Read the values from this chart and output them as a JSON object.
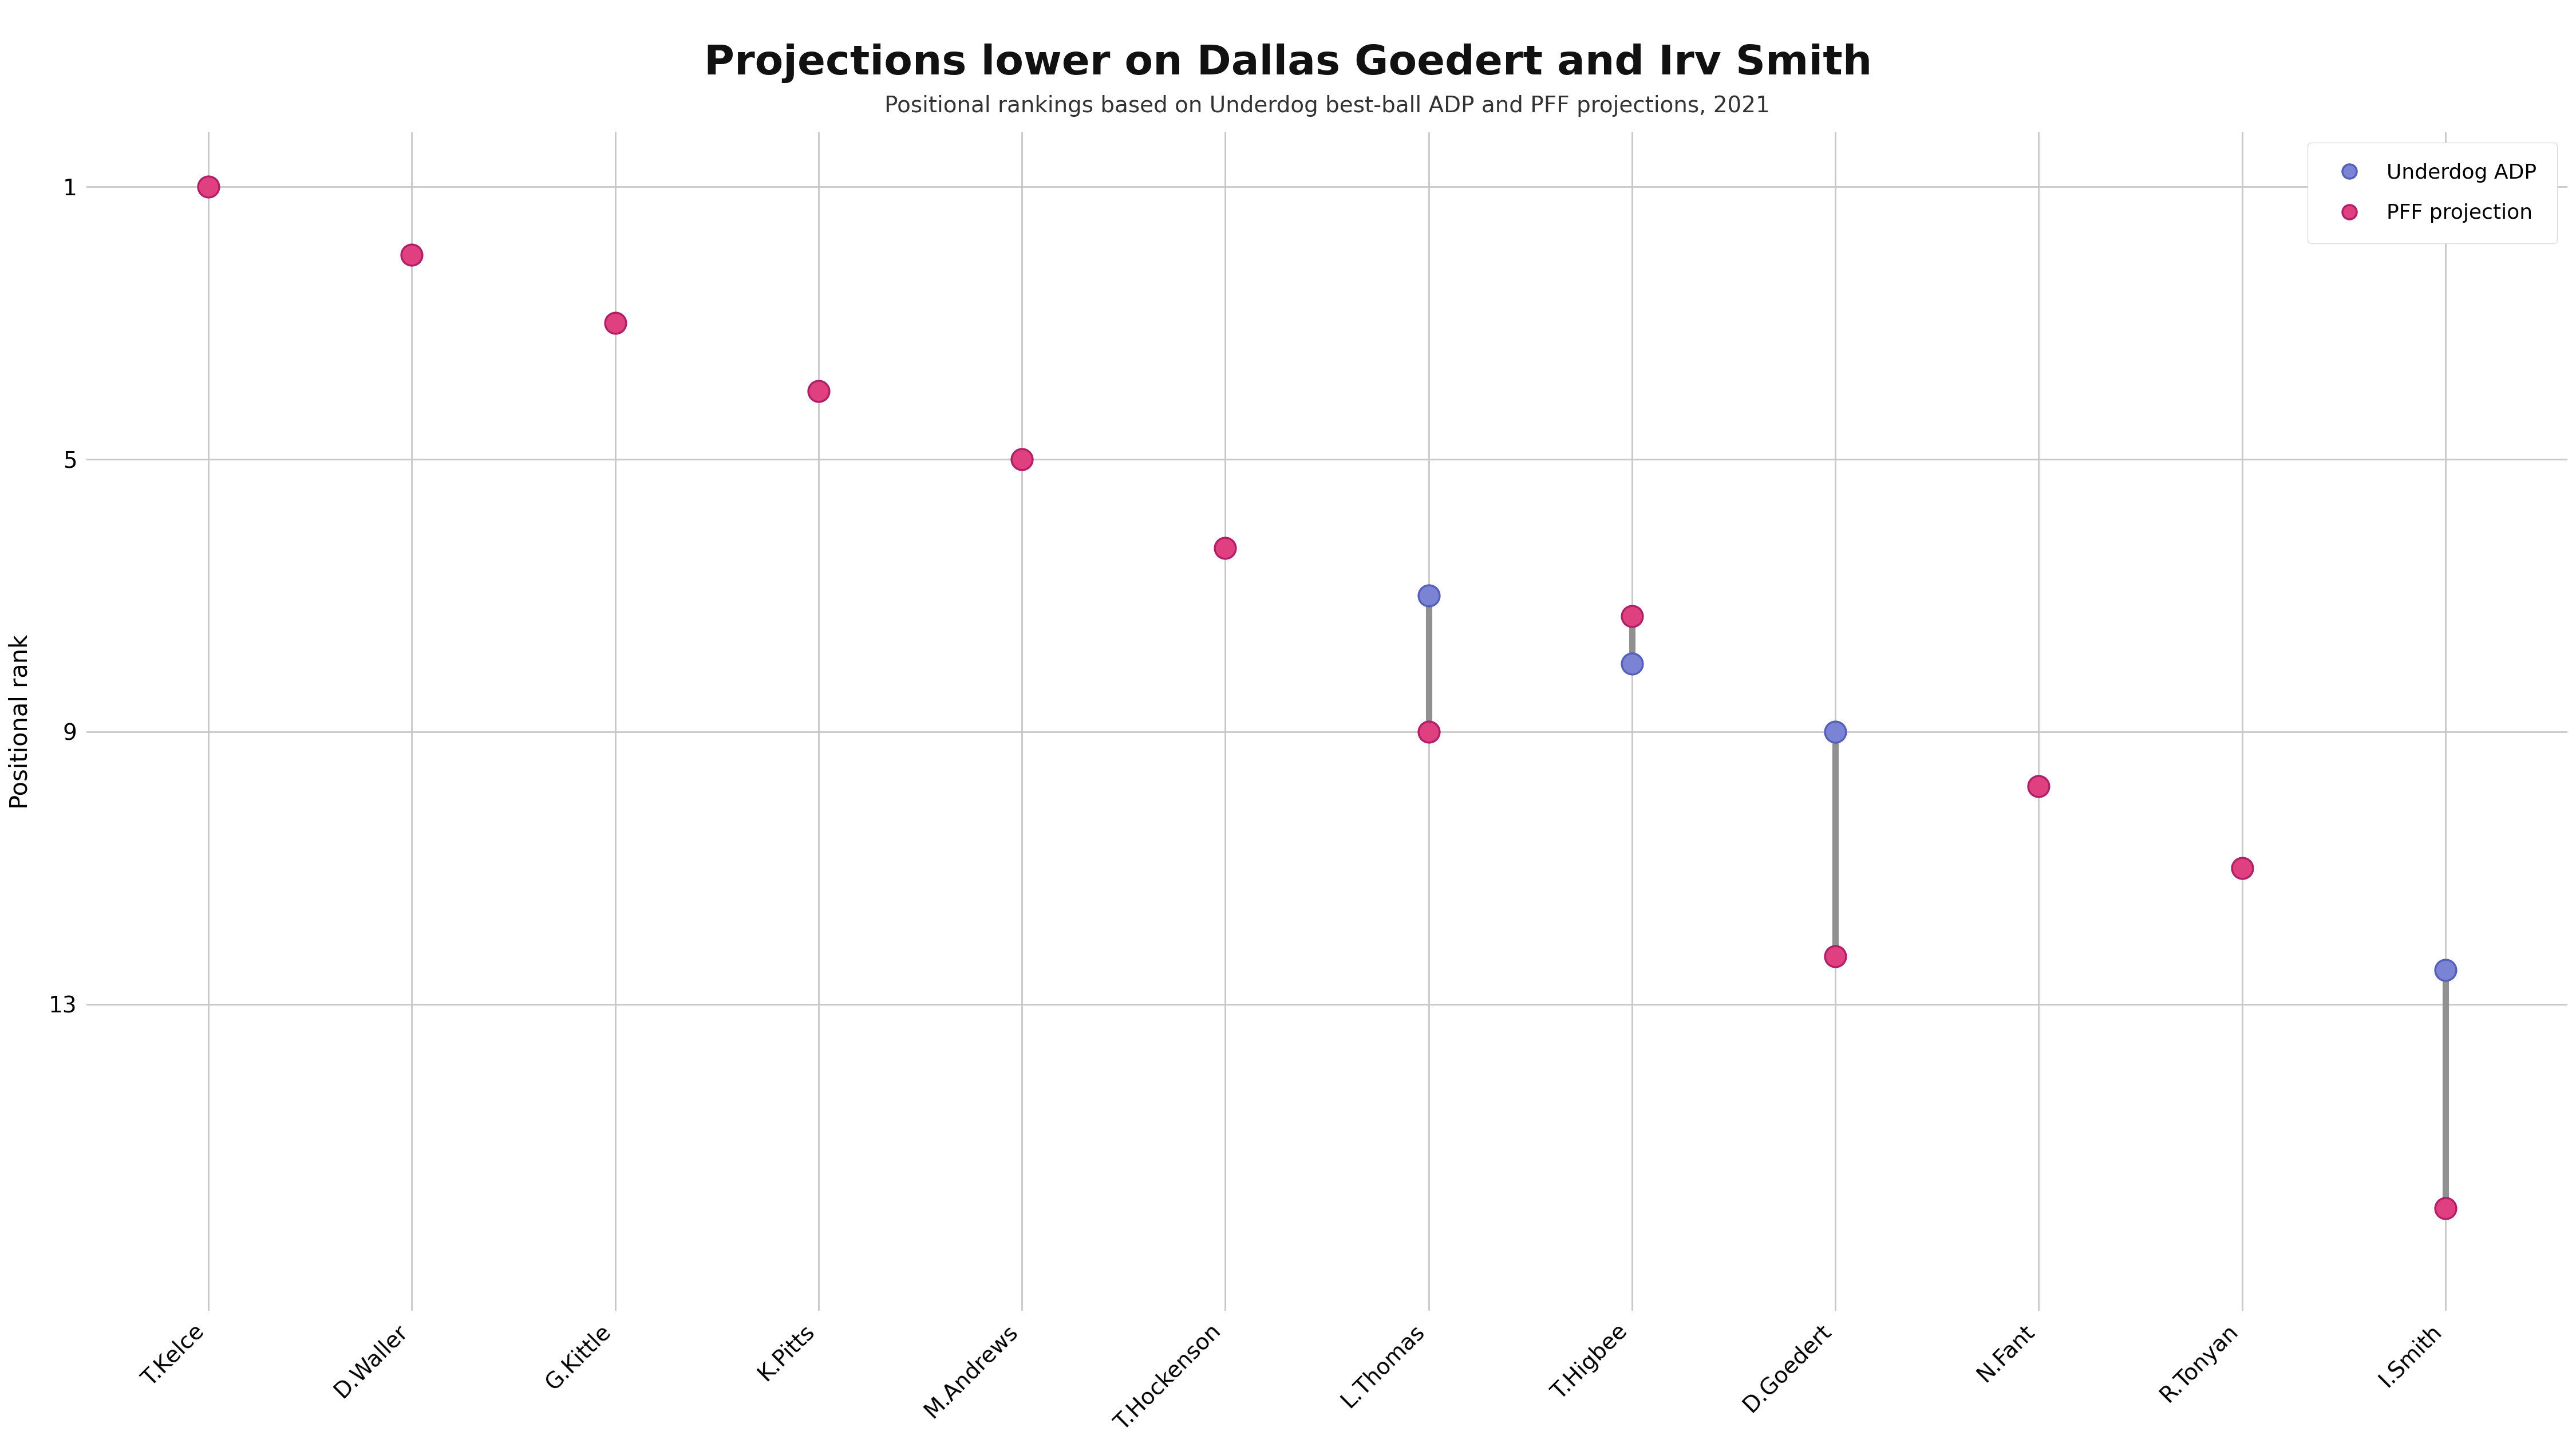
{
  "title": "Projections lower on Dallas Goedert and Irv Smith",
  "subtitle": "Positional rankings based on Underdog best-ball ADP and PFF projections, 2021",
  "ylabel": "Positional rank",
  "players": [
    "T.Kelce",
    "D.Waller",
    "G.Kittle",
    "K.Pitts",
    "M.Andrews",
    "T.Hockenson",
    "L.Thomas",
    "T.Higbee",
    "D.Goedert",
    "N.Fant",
    "R.Tonyan",
    "I.Smith"
  ],
  "adp_rank": [
    null,
    null,
    null,
    null,
    null,
    null,
    7.0,
    8.0,
    9.0,
    null,
    null,
    12.5
  ],
  "pff_rank": [
    1.0,
    2.0,
    3.0,
    4.0,
    5.0,
    6.3,
    9.0,
    7.3,
    12.3,
    9.8,
    11.0,
    16.0
  ],
  "adp_color": "#7b84d4",
  "pff_color": "#e0407f",
  "adp_edge_color": "#5560b8",
  "pff_edge_color": "#b02068",
  "connector_color": "#909090",
  "background_color": "#ffffff",
  "grid_color": "#c8c8c8",
  "ylim_min": 0.2,
  "ylim_max": 17.5,
  "title_fontsize": 52,
  "subtitle_fontsize": 28,
  "ylabel_fontsize": 30,
  "tick_fontsize": 28,
  "legend_fontsize": 26,
  "yticks": [
    1,
    5,
    9,
    13
  ],
  "marker_size": 700,
  "connector_linewidth": 8
}
